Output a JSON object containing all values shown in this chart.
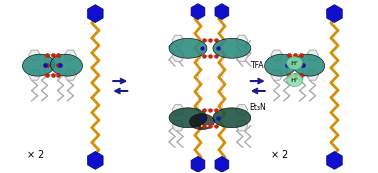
{
  "background_color": "#ffffff",
  "tfa_label": "TFA",
  "et3n_label": "Et₃N",
  "teal_color": "#2a8b80",
  "teal_dark": "#1a5040",
  "teal_mid": "#1e6e60",
  "blue_color": "#1010cc",
  "red_color": "#cc2200",
  "gold_color": "#d4900a",
  "gray_color": "#aaaaaa",
  "lgray_color": "#cccccc",
  "dark_gray": "#666666",
  "green_light": "#88ddaa",
  "white": "#ffffff",
  "navy": "#1a1a8c"
}
